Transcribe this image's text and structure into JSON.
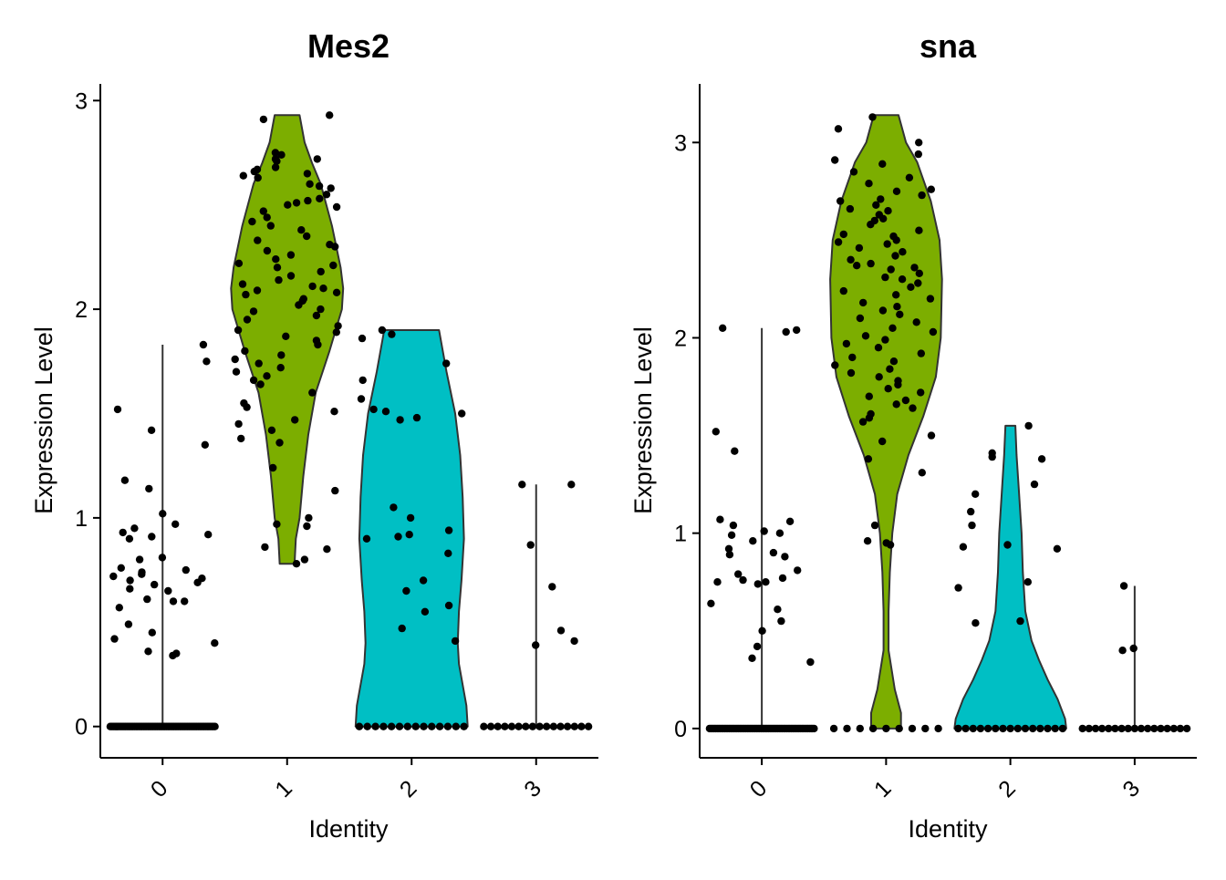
{
  "chart_data": [
    {
      "type": "violin",
      "title": "Mes2",
      "xlabel": "Identity",
      "ylabel": "Expression Level",
      "categories": [
        "0",
        "1",
        "2",
        "3"
      ],
      "yticks": [
        0,
        1,
        2,
        3
      ],
      "ylim": [
        -0.15,
        3.08
      ],
      "grid": false,
      "legend": "none",
      "colors": [
        "#F8766D",
        "#7CAE00",
        "#00BFC4",
        "#C77CFF"
      ],
      "violins": [
        {
          "category": "0",
          "max": 1.83,
          "widths": [
            [
              0,
              0.0
            ]
          ]
        },
        {
          "category": "1",
          "min": 0.78,
          "max": 2.93,
          "widths": [
            [
              0.78,
              0.06
            ],
            [
              0.9,
              0.07
            ],
            [
              1.0,
              0.1
            ],
            [
              1.2,
              0.13
            ],
            [
              1.4,
              0.17
            ],
            [
              1.6,
              0.23
            ],
            [
              1.8,
              0.34
            ],
            [
              2.0,
              0.44
            ],
            [
              2.1,
              0.45
            ],
            [
              2.2,
              0.43
            ],
            [
              2.4,
              0.36
            ],
            [
              2.6,
              0.27
            ],
            [
              2.7,
              0.2
            ],
            [
              2.8,
              0.14
            ],
            [
              2.93,
              0.1
            ]
          ]
        },
        {
          "category": "2",
          "min": 0.0,
          "max": 1.9,
          "widths": [
            [
              0.0,
              0.45
            ],
            [
              0.1,
              0.44
            ],
            [
              0.2,
              0.41
            ],
            [
              0.3,
              0.38
            ],
            [
              0.4,
              0.37
            ],
            [
              0.55,
              0.38
            ],
            [
              0.7,
              0.4
            ],
            [
              0.9,
              0.42
            ],
            [
              1.1,
              0.41
            ],
            [
              1.3,
              0.39
            ],
            [
              1.5,
              0.35
            ],
            [
              1.7,
              0.28
            ],
            [
              1.9,
              0.22
            ]
          ]
        },
        {
          "category": "3",
          "max": 1.16,
          "widths": [
            [
              0,
              0.0
            ]
          ]
        }
      ],
      "points": [
        {
          "category": "0",
          "zero_count": 70,
          "values": [
            1.83,
            1.75,
            1.52,
            1.42,
            1.35,
            1.18,
            1.14,
            1.02,
            0.97,
            0.95,
            0.93,
            0.92,
            0.91,
            0.9,
            0.81,
            0.8,
            0.76,
            0.75,
            0.74,
            0.73,
            0.72,
            0.71,
            0.7,
            0.69,
            0.68,
            0.66,
            0.65,
            0.61,
            0.6,
            0.6,
            0.57,
            0.49,
            0.45,
            0.42,
            0.4,
            0.36,
            0.35,
            0.34
          ]
        },
        {
          "category": "1",
          "zero_count": 0,
          "values": [
            2.93,
            2.91,
            2.75,
            2.74,
            2.72,
            2.72,
            2.71,
            2.68,
            2.67,
            2.66,
            2.65,
            2.64,
            2.63,
            2.6,
            2.59,
            2.58,
            2.55,
            2.53,
            2.52,
            2.51,
            2.5,
            2.49,
            2.47,
            2.44,
            2.42,
            2.4,
            2.38,
            2.35,
            2.33,
            2.31,
            2.3,
            2.28,
            2.26,
            2.24,
            2.22,
            2.21,
            2.2,
            2.18,
            2.16,
            2.14,
            2.12,
            2.11,
            2.1,
            2.09,
            2.08,
            2.07,
            2.05,
            2.04,
            2.02,
            2.0,
            1.99,
            1.97,
            1.95,
            1.92,
            1.9,
            1.89,
            1.87,
            1.85,
            1.83,
            1.8,
            1.78,
            1.76,
            1.74,
            1.72,
            1.7,
            1.68,
            1.66,
            1.64,
            1.6,
            1.55,
            1.53,
            1.51,
            1.47,
            1.45,
            1.42,
            1.38,
            1.36,
            1.24,
            1.13,
            1.0,
            0.97,
            0.96,
            0.86,
            0.85,
            0.8,
            0.78
          ]
        },
        {
          "category": "2",
          "zero_count": 14,
          "values": [
            1.9,
            1.88,
            1.86,
            1.74,
            1.66,
            1.57,
            1.52,
            1.51,
            1.5,
            1.48,
            1.47,
            1.05,
            1.0,
            0.94,
            0.92,
            0.91,
            0.9,
            0.83,
            0.7,
            0.65,
            0.58,
            0.55,
            0.47,
            0.41
          ]
        },
        {
          "category": "3",
          "zero_count": 16,
          "values": [
            1.16,
            1.16,
            0.87,
            0.67,
            0.46,
            0.41,
            0.39
          ]
        }
      ]
    },
    {
      "type": "violin",
      "title": "sna",
      "xlabel": "Identity",
      "ylabel": "Expression Level",
      "categories": [
        "0",
        "1",
        "2",
        "3"
      ],
      "yticks": [
        0,
        1,
        2,
        3
      ],
      "ylim": [
        -0.15,
        3.3
      ],
      "grid": false,
      "legend": "none",
      "colors": [
        "#F8766D",
        "#7CAE00",
        "#00BFC4",
        "#C77CFF"
      ],
      "violins": [
        {
          "category": "0",
          "max": 2.05,
          "widths": [
            [
              0,
              0.0
            ]
          ]
        },
        {
          "category": "1",
          "min": 0.0,
          "max": 3.14,
          "widths": [
            [
              0.0,
              0.12
            ],
            [
              0.08,
              0.12
            ],
            [
              0.2,
              0.07
            ],
            [
              0.4,
              0.02
            ],
            [
              0.6,
              0.02
            ],
            [
              0.8,
              0.03
            ],
            [
              1.0,
              0.05
            ],
            [
              1.2,
              0.09
            ],
            [
              1.4,
              0.18
            ],
            [
              1.6,
              0.3
            ],
            [
              1.8,
              0.4
            ],
            [
              2.0,
              0.44
            ],
            [
              2.3,
              0.45
            ],
            [
              2.5,
              0.43
            ],
            [
              2.7,
              0.36
            ],
            [
              2.9,
              0.25
            ],
            [
              3.0,
              0.16
            ],
            [
              3.14,
              0.1
            ]
          ]
        },
        {
          "category": "2",
          "min": 0.0,
          "max": 1.55,
          "widths": [
            [
              0.0,
              0.45
            ],
            [
              0.05,
              0.44
            ],
            [
              0.15,
              0.38
            ],
            [
              0.25,
              0.3
            ],
            [
              0.35,
              0.23
            ],
            [
              0.45,
              0.17
            ],
            [
              0.6,
              0.12
            ],
            [
              0.8,
              0.1
            ],
            [
              1.0,
              0.09
            ],
            [
              1.2,
              0.07
            ],
            [
              1.4,
              0.05
            ],
            [
              1.55,
              0.04
            ]
          ]
        },
        {
          "category": "3",
          "max": 0.73,
          "widths": [
            [
              0,
              0.0
            ]
          ]
        }
      ],
      "points": [
        {
          "category": "0",
          "zero_count": 70,
          "values": [
            2.05,
            2.04,
            2.03,
            1.52,
            1.42,
            1.07,
            1.06,
            1.04,
            1.01,
            1.0,
            0.99,
            0.96,
            0.92,
            0.9,
            0.89,
            0.88,
            0.81,
            0.79,
            0.77,
            0.76,
            0.75,
            0.75,
            0.74,
            0.64,
            0.61,
            0.55,
            0.5,
            0.42,
            0.36,
            0.34
          ]
        },
        {
          "category": "1",
          "zero_count": 9,
          "values": [
            3.13,
            3.07,
            3.0,
            2.94,
            2.91,
            2.89,
            2.85,
            2.82,
            2.79,
            2.76,
            2.75,
            2.73,
            2.71,
            2.7,
            2.68,
            2.66,
            2.65,
            2.63,
            2.61,
            2.6,
            2.58,
            2.55,
            2.53,
            2.52,
            2.5,
            2.49,
            2.48,
            2.46,
            2.44,
            2.42,
            2.4,
            2.38,
            2.37,
            2.36,
            2.35,
            2.33,
            2.31,
            2.3,
            2.28,
            2.26,
            2.24,
            2.22,
            2.2,
            2.18,
            2.16,
            2.14,
            2.12,
            2.1,
            2.08,
            2.05,
            2.03,
            2.01,
            1.99,
            1.97,
            1.95,
            1.92,
            1.9,
            1.88,
            1.86,
            1.84,
            1.82,
            1.8,
            1.78,
            1.76,
            1.74,
            1.72,
            1.7,
            1.68,
            1.66,
            1.64,
            1.61,
            1.59,
            1.57,
            1.5,
            1.47,
            1.38,
            1.31,
            1.04,
            0.96,
            0.95,
            0.94
          ]
        },
        {
          "category": "2",
          "zero_count": 15,
          "values": [
            1.55,
            1.41,
            1.39,
            1.38,
            1.25,
            1.2,
            1.11,
            1.04,
            0.94,
            0.93,
            0.92,
            0.75,
            0.72,
            0.55,
            0.54
          ]
        },
        {
          "category": "3",
          "zero_count": 17,
          "values": [
            0.73,
            0.41,
            0.4
          ]
        }
      ]
    }
  ]
}
